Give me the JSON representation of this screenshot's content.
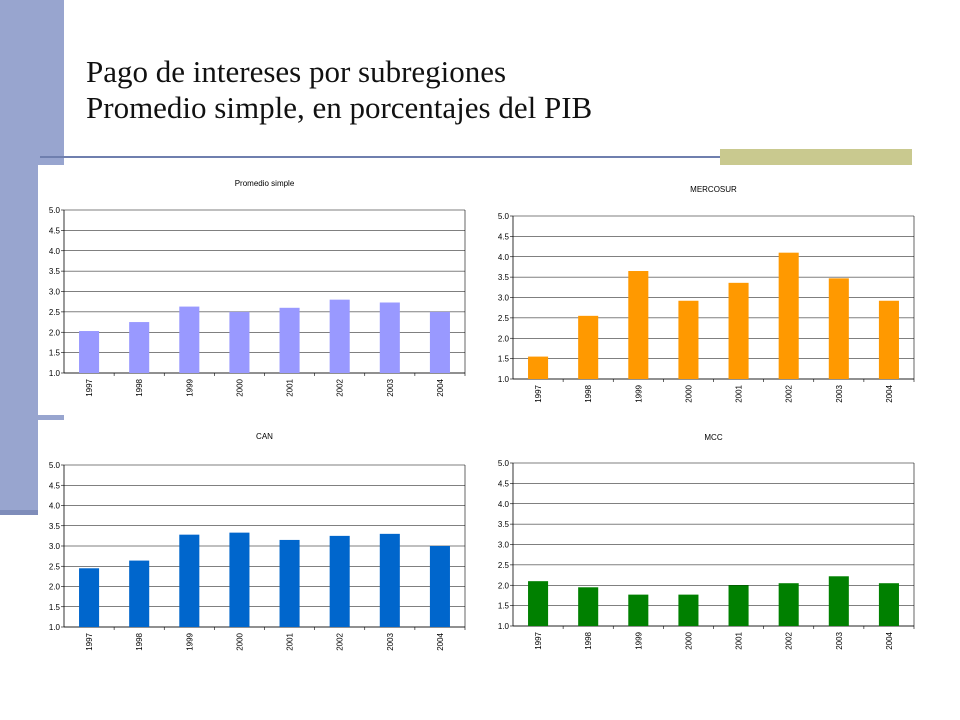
{
  "slide": {
    "title_line1": "Pago de intereses por subregiones",
    "title_line2": "Promedio simple, en porcentajes del PIB"
  },
  "colors": {
    "left_bar": "#98a5cf",
    "rule": "#6f7fae",
    "rule_accent": "#c9c98f"
  },
  "chart_data": [
    {
      "type": "bar",
      "title": "Promedio simple",
      "categories": [
        "1997",
        "1998",
        "1999",
        "2000",
        "2001",
        "2002",
        "2003",
        "2004"
      ],
      "values": [
        2.03,
        2.25,
        2.63,
        2.5,
        2.6,
        2.8,
        2.73,
        2.5
      ],
      "ylim": [
        1.0,
        5.0
      ],
      "yticks": [
        "1.0",
        "1.5",
        "2.0",
        "2.5",
        "3.0",
        "3.5",
        "4.0",
        "4.5",
        "5.0"
      ],
      "color": "#9999ff",
      "grid": true,
      "xlabel": "",
      "ylabel": ""
    },
    {
      "type": "bar",
      "title": "MERCOSUR",
      "categories": [
        "1997",
        "1998",
        "1999",
        "2000",
        "2001",
        "2002",
        "2003",
        "2004"
      ],
      "values": [
        1.55,
        2.55,
        3.65,
        2.92,
        3.36,
        4.1,
        3.47,
        2.92
      ],
      "ylim": [
        1.0,
        5.0
      ],
      "yticks": [
        "1.0",
        "1.5",
        "2.0",
        "2.5",
        "3.0",
        "3.5",
        "4.0",
        "4.5",
        "5.0"
      ],
      "color": "#ff9900",
      "grid": true,
      "xlabel": "",
      "ylabel": ""
    },
    {
      "type": "bar",
      "title": "CAN",
      "categories": [
        "1997",
        "1998",
        "1999",
        "2000",
        "2001",
        "2002",
        "2003",
        "2004"
      ],
      "values": [
        2.45,
        2.64,
        3.28,
        3.33,
        3.15,
        3.25,
        3.3,
        3.0
      ],
      "ylim": [
        1.0,
        5.0
      ],
      "yticks": [
        "1.0",
        "1.5",
        "2.0",
        "2.5",
        "3.0",
        "3.5",
        "4.0",
        "4.5",
        "5.0"
      ],
      "color": "#0066cc",
      "grid": true,
      "xlabel": "",
      "ylabel": ""
    },
    {
      "type": "bar",
      "title": "MCC",
      "categories": [
        "1997",
        "1998",
        "1999",
        "2000",
        "2001",
        "2002",
        "2003",
        "2004"
      ],
      "values": [
        2.1,
        1.95,
        1.77,
        1.77,
        2.0,
        2.05,
        2.22,
        2.05
      ],
      "ylim": [
        1.0,
        5.0
      ],
      "yticks": [
        "1.0",
        "1.5",
        "2.0",
        "2.5",
        "3.0",
        "3.5",
        "4.0",
        "4.5",
        "5.0"
      ],
      "color": "#008000",
      "grid": true,
      "xlabel": "",
      "ylabel": ""
    }
  ]
}
